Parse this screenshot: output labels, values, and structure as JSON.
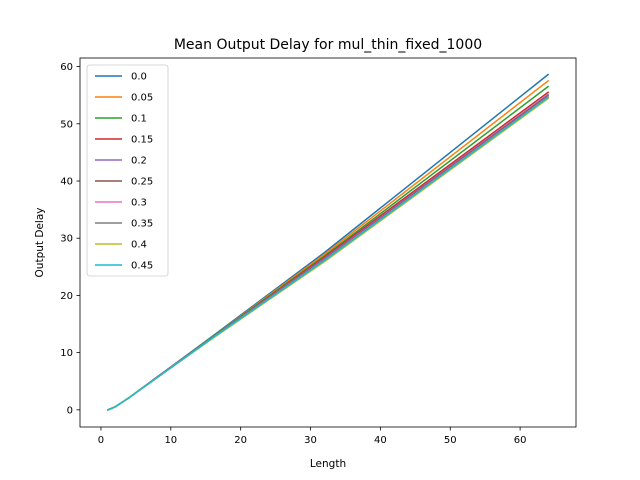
{
  "chart_data": {
    "type": "line",
    "title": "Mean Output Delay for mul_thin_fixed_1000",
    "xlabel": "Length",
    "ylabel": "Output Delay",
    "xlim": [
      -3,
      68
    ],
    "ylim": [
      -3,
      61.5
    ],
    "xticks": [
      0,
      10,
      20,
      30,
      40,
      50,
      60
    ],
    "yticks": [
      0,
      10,
      20,
      30,
      40,
      50,
      60
    ],
    "grid": false,
    "legend_position": "upper-left",
    "x": [
      1,
      2,
      4,
      8,
      16,
      32,
      64
    ],
    "series": [
      {
        "name": "0.0",
        "color": "#1f77b4",
        "values": [
          0.0,
          0.5,
          2.1,
          5.7,
          12.9,
          27.5,
          58.6
        ]
      },
      {
        "name": "0.05",
        "color": "#ff7f0e",
        "values": [
          0.0,
          0.5,
          2.1,
          5.7,
          12.8,
          27.2,
          57.5
        ]
      },
      {
        "name": "0.1",
        "color": "#2ca02c",
        "values": [
          0.0,
          0.5,
          2.1,
          5.7,
          12.8,
          26.9,
          56.5
        ]
      },
      {
        "name": "0.15",
        "color": "#d62728",
        "values": [
          0.0,
          0.5,
          2.1,
          5.7,
          12.7,
          26.7,
          55.5
        ]
      },
      {
        "name": "0.2",
        "color": "#9467bd",
        "values": [
          0.0,
          0.5,
          2.1,
          5.7,
          12.7,
          26.5,
          55.1
        ]
      },
      {
        "name": "0.25",
        "color": "#8c564b",
        "values": [
          0.0,
          0.5,
          2.1,
          5.6,
          12.6,
          26.3,
          54.9
        ]
      },
      {
        "name": "0.3",
        "color": "#e377c2",
        "values": [
          0.0,
          0.5,
          2.1,
          5.6,
          12.6,
          26.2,
          54.7
        ]
      },
      {
        "name": "0.35",
        "color": "#7f7f7f",
        "values": [
          0.0,
          0.5,
          2.1,
          5.6,
          12.6,
          26.1,
          54.6
        ]
      },
      {
        "name": "0.4",
        "color": "#bcbd22",
        "values": [
          0.0,
          0.5,
          2.1,
          5.6,
          12.5,
          25.9,
          54.4
        ]
      },
      {
        "name": "0.45",
        "color": "#17becf",
        "values": [
          0.0,
          0.5,
          2.1,
          5.6,
          12.6,
          26.1,
          54.6
        ]
      }
    ]
  }
}
